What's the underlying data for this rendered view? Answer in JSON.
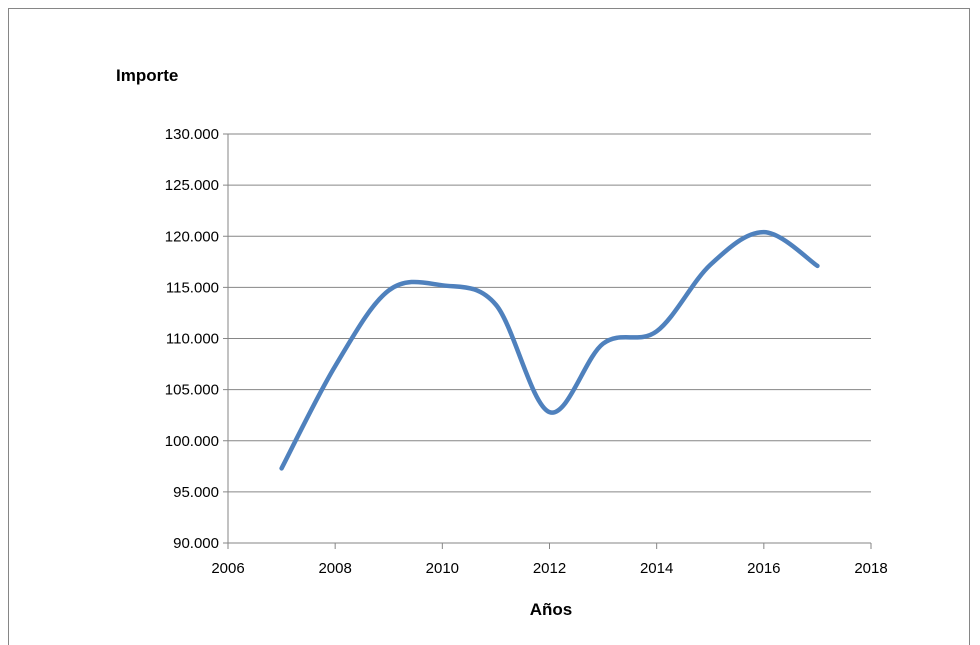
{
  "chart_data": {
    "type": "line",
    "title": "",
    "xlabel": "Años",
    "ylabel": "Importe",
    "xlim": [
      2006,
      2018
    ],
    "ylim": [
      90000,
      130000
    ],
    "x_ticks": [
      2006,
      2008,
      2010,
      2012,
      2014,
      2016,
      2018
    ],
    "x_tick_labels": [
      "2006",
      "2008",
      "2010",
      "2012",
      "2014",
      "2016",
      "2018"
    ],
    "y_ticks": [
      90000,
      95000,
      100000,
      105000,
      110000,
      115000,
      120000,
      125000,
      130000
    ],
    "y_tick_labels": [
      "90.000",
      "95.000",
      "100.000",
      "105.000",
      "110.000",
      "115.000",
      "120.000",
      "125.000",
      "130.000"
    ],
    "grid": "horizontal",
    "smooth": true,
    "series": [
      {
        "color": "#4F81BD",
        "x": [
          2007,
          2008,
          2009,
          2010,
          2011,
          2012,
          2013,
          2014,
          2015,
          2016,
          2017
        ],
        "y": [
          97300,
          107300,
          114700,
          115200,
          113300,
          102800,
          109500,
          110700,
          117200,
          120400,
          117100
        ]
      }
    ]
  }
}
